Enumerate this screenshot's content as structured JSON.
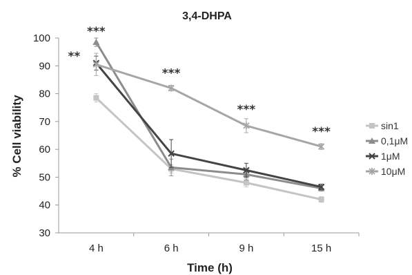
{
  "chart_data": {
    "type": "line",
    "title": "3,4-DHPA",
    "xlabel": "Time (h)",
    "ylabel": "% Cell viability",
    "categories": [
      "4 h",
      "6 h",
      "9 h",
      "15 h"
    ],
    "ylim": [
      30,
      100
    ],
    "yticks": [
      30,
      40,
      50,
      60,
      70,
      80,
      90,
      100
    ],
    "grid": false,
    "legend_position": "right",
    "series": [
      {
        "name": "sin1",
        "values": [
          78.5,
          53,
          48,
          42
        ],
        "errors": [
          1.5,
          1.5,
          1.5,
          1
        ],
        "color": "#c4c4c4",
        "marker": "square"
      },
      {
        "name": "0,1μM",
        "values": [
          98.5,
          53.5,
          51,
          46
        ],
        "errors": [
          1.5,
          3,
          2,
          1
        ],
        "color": "#8c8c8c",
        "marker": "triangle"
      },
      {
        "name": "1μM",
        "values": [
          91,
          58.5,
          52.5,
          46.5
        ],
        "errors": [
          2.5,
          5,
          2.5,
          1
        ],
        "color": "#444444",
        "marker": "x"
      },
      {
        "name": "10μM",
        "values": [
          90.5,
          82,
          68.5,
          61
        ],
        "errors": [
          4,
          1,
          2.5,
          1
        ],
        "color": "#a6a6a6",
        "marker": "star"
      }
    ],
    "annotations": [
      {
        "text": "***",
        "category": "4 h",
        "y": 101
      },
      {
        "text": "**",
        "category": "4 h",
        "y": 92
      },
      {
        "text": "***",
        "category": "6 h",
        "y": 86
      },
      {
        "text": "***",
        "category": "9 h",
        "y": 73
      },
      {
        "text": "***",
        "category": "15 h",
        "y": 65
      }
    ]
  }
}
